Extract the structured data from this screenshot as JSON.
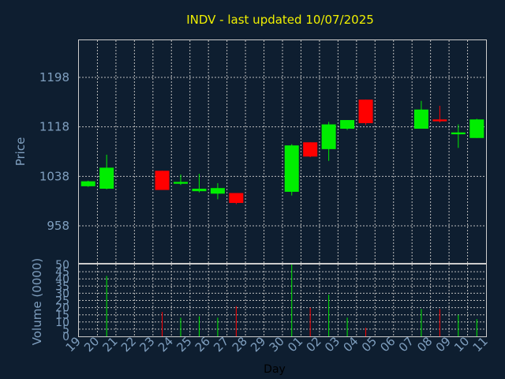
{
  "chart_data": {
    "type": "candlestick",
    "title": "INDV - last updated 10/07/2025",
    "price_axis": {
      "label": "Price",
      "ylim": [
        898,
        1258
      ],
      "ticks": [
        958,
        1038,
        1118,
        1198
      ]
    },
    "volume_axis": {
      "label": "Volume (0000)",
      "ylim": [
        0,
        50
      ],
      "ticks": [
        0,
        5,
        10,
        15,
        20,
        25,
        30,
        35,
        40,
        45,
        50
      ]
    },
    "xlabel": "Day",
    "x_ticks": [
      "19",
      "20",
      "21",
      "22",
      "23",
      "24",
      "25",
      "26",
      "27",
      "28",
      "29",
      "30",
      "01",
      "02",
      "03",
      "04",
      "05",
      "06",
      "07",
      "08",
      "09",
      "10",
      "11"
    ],
    "grid": true,
    "colors": {
      "up": "#00ee00",
      "down": "#ff0000",
      "background": "#0e1e30",
      "title": "#f0f000",
      "axis_text": "#7f9fbf",
      "grid": "#bbbbbb"
    },
    "candles": [
      {
        "day": "19",
        "open": 1022,
        "high": 1031,
        "low": 1021,
        "close": 1030,
        "volume": 0
      },
      {
        "day": "20",
        "open": 1018,
        "high": 1073,
        "low": 1017,
        "close": 1052,
        "volume": 42
      },
      {
        "day": "23",
        "open": 1047,
        "high": 1047,
        "low": 1016,
        "close": 1016,
        "volume": 17
      },
      {
        "day": "24",
        "open": 1026,
        "high": 1041,
        "low": 1024,
        "close": 1029,
        "volume": 13
      },
      {
        "day": "25",
        "open": 1014,
        "high": 1042,
        "low": 1012,
        "close": 1018,
        "volume": 14
      },
      {
        "day": "26",
        "open": 1010,
        "high": 1027,
        "low": 1001,
        "close": 1019,
        "volume": 13
      },
      {
        "day": "27",
        "open": 1011,
        "high": 1011,
        "low": 993,
        "close": 995,
        "volume": 21
      },
      {
        "day": "30",
        "open": 1013,
        "high": 1090,
        "low": 1007,
        "close": 1088,
        "volume": 50
      },
      {
        "day": "01",
        "open": 1093,
        "high": 1093,
        "low": 1069,
        "close": 1070,
        "volume": 20
      },
      {
        "day": "02",
        "open": 1082,
        "high": 1126,
        "low": 1063,
        "close": 1122,
        "volume": 29
      },
      {
        "day": "03",
        "open": 1115,
        "high": 1129,
        "low": 1113,
        "close": 1129,
        "volume": 13
      },
      {
        "day": "04",
        "open": 1162,
        "high": 1162,
        "low": 1121,
        "close": 1124,
        "volume": 6
      },
      {
        "day": "07",
        "open": 1115,
        "high": 1160,
        "low": 1115,
        "close": 1146,
        "volume": 19
      },
      {
        "day": "08",
        "open": 1130,
        "high": 1152,
        "low": 1125,
        "close": 1127,
        "volume": 19
      },
      {
        "day": "09",
        "open": 1106,
        "high": 1122,
        "low": 1084,
        "close": 1109,
        "volume": 15
      },
      {
        "day": "10",
        "open": 1100,
        "high": 1131,
        "low": 1100,
        "close": 1130,
        "volume": 12
      }
    ]
  }
}
